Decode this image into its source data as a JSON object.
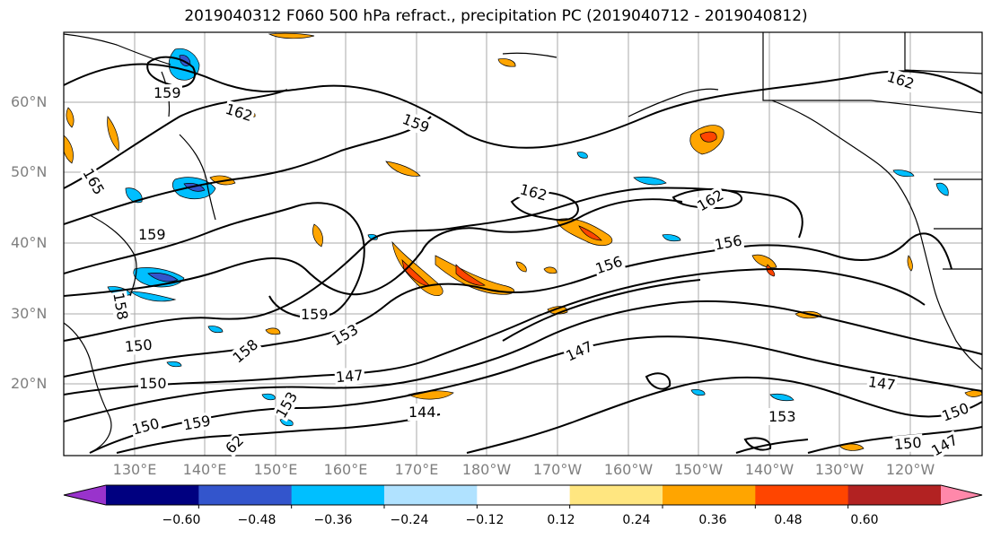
{
  "title": "2019040312 F060 500 hPa refract., precipitation PC (2019040712 - 2019040812)",
  "lat_labels": [
    "60°N",
    "50°N",
    "40°N",
    "30°N",
    "20°N"
  ],
  "lon_labels": [
    "130°E",
    "140°E",
    "150°E",
    "160°E",
    "170°E",
    "180°W",
    "170°W",
    "160°W",
    "150°W",
    "140°W",
    "130°W",
    "120°W"
  ],
  "contour_labels": [
    "159",
    "162",
    "159",
    "165",
    "162",
    "162",
    "162",
    "159",
    "156",
    "156",
    "158",
    "159",
    "153",
    "150",
    "158",
    "147",
    "147",
    "150",
    "144",
    "147",
    "153",
    "150",
    "150",
    "150",
    "159",
    "153",
    "62",
    "147"
  ],
  "colorbar": {
    "colors": [
      "#9933cc",
      "#000080",
      "#3355cc",
      "#00bfff",
      "#b0e2ff",
      "#ffffff",
      "#ffe680",
      "#ffa500",
      "#ff4500",
      "#b22222",
      "#ff88aa"
    ],
    "tick_labels": [
      "−0.60",
      "−0.48",
      "−0.36",
      "−0.24",
      "−0.12",
      "0.12",
      "0.24",
      "0.36",
      "0.48",
      "0.60"
    ]
  }
}
